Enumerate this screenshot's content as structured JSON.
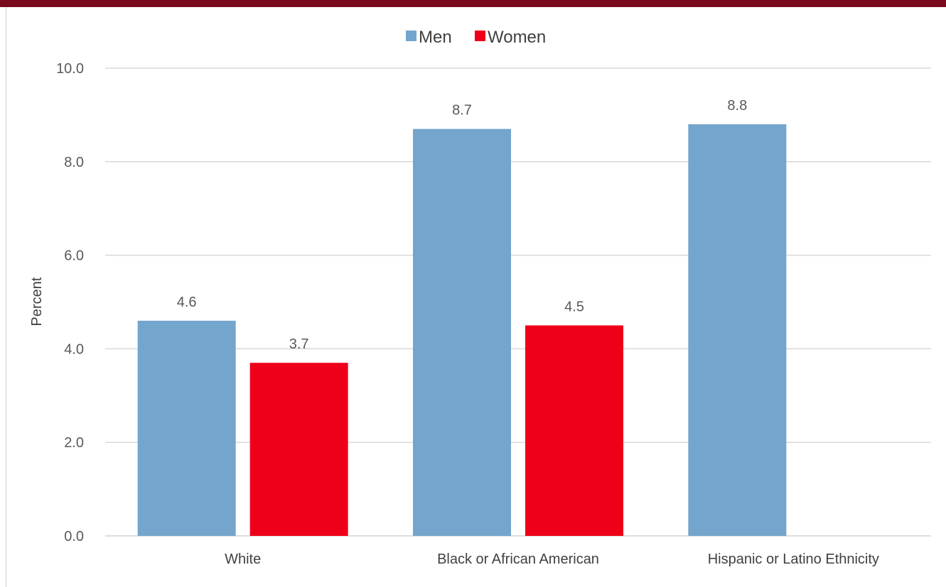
{
  "colors": {
    "top_band": "#7a0a1e",
    "men": "#74a5cc",
    "women": "#ee0019",
    "grid": "#d9d9d9"
  },
  "chart_data": {
    "type": "bar",
    "categories": [
      "White",
      "Black or African American",
      "Hispanic or Latino Ethnicity"
    ],
    "series": [
      {
        "name": "Men",
        "values": [
          4.6,
          8.7,
          8.8
        ]
      },
      {
        "name": "Women",
        "values": [
          3.7,
          4.5,
          null
        ]
      }
    ],
    "ylabel": "Percent",
    "xlabel": "",
    "ylim": [
      0,
      10
    ],
    "yticks": [
      "0.0",
      "2.0",
      "4.0",
      "6.0",
      "8.0",
      "10.0"
    ],
    "data_labels": true,
    "grid": true,
    "legend_position": "top-center"
  }
}
